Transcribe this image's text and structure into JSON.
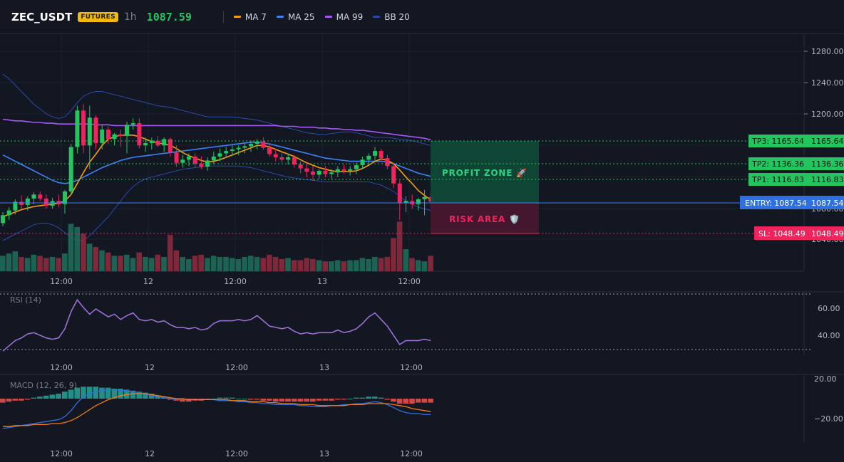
{
  "header": {
    "symbol": "ZEC_USDT",
    "badge": "FUTURES",
    "interval": "1h",
    "last_price": "1087.59"
  },
  "legend": [
    {
      "label": "MA 7",
      "color": "#f59e0b",
      "icon": "line-swatch"
    },
    {
      "label": "MA 25",
      "color": "#3b82f6",
      "icon": "line-swatch"
    },
    {
      "label": "MA 99",
      "color": "#a855f7",
      "icon": "line-swatch"
    },
    {
      "label": "BB 20",
      "color": "#2b4aa8",
      "icon": "line-swatch"
    }
  ],
  "colors": {
    "up": "#22c55e",
    "down": "#f0245d",
    "entry": "#3b82f6",
    "target": "#22c55e",
    "stop": "#f0245d",
    "rsi": "#9c6fd6",
    "macd_line": "#2f6fe0",
    "signal_line": "#f07c1a"
  },
  "price_axis": {
    "ticks": [
      "1280.00",
      "1240.00",
      "1200.00",
      "1080.00",
      "1040.00"
    ]
  },
  "time_axis": [
    "12:00",
    "12",
    "12:00",
    "13",
    "12:00"
  ],
  "levels": {
    "tp3": {
      "label": "TP3: 1165.64",
      "value": "1165.64"
    },
    "tp2": {
      "label": "TP2: 1136.36",
      "value": "1136.36"
    },
    "tp1": {
      "label": "TP1: 1116.83",
      "value": "1116.83"
    },
    "entry": {
      "label": "ENTRY: 1087.54",
      "value": "1087.54"
    },
    "sl": {
      "label": "SL: 1048.49",
      "value": "1048.49"
    }
  },
  "zones": {
    "profit": "PROFIT ZONE 🚀",
    "risk": "RISK AREA 🛡️"
  },
  "rsi": {
    "title": "RSI (14)",
    "ticks": [
      "60.00",
      "40.00"
    ]
  },
  "macd": {
    "title": "MACD (12, 26, 9)",
    "ticks": [
      "20.00",
      "−20.00"
    ]
  },
  "chart_data": {
    "type": "candlestick",
    "price_range": [
      1025,
      1295
    ],
    "candles": [
      [
        1062,
        1076,
        1058,
        1072
      ],
      [
        1072,
        1082,
        1066,
        1078
      ],
      [
        1078,
        1092,
        1073,
        1089
      ],
      [
        1089,
        1097,
        1080,
        1085
      ],
      [
        1085,
        1096,
        1078,
        1093
      ],
      [
        1093,
        1101,
        1086,
        1098
      ],
      [
        1098,
        1102,
        1090,
        1093
      ],
      [
        1093,
        1098,
        1080,
        1084
      ],
      [
        1084,
        1094,
        1080,
        1090
      ],
      [
        1090,
        1098,
        1082,
        1086
      ],
      [
        1086,
        1104,
        1074,
        1102
      ],
      [
        1102,
        1162,
        1098,
        1158
      ],
      [
        1158,
        1210,
        1150,
        1204
      ],
      [
        1204,
        1212,
        1150,
        1160
      ],
      [
        1160,
        1210,
        1130,
        1195
      ],
      [
        1195,
        1198,
        1155,
        1163
      ],
      [
        1163,
        1186,
        1155,
        1180
      ],
      [
        1180,
        1184,
        1162,
        1168
      ],
      [
        1168,
        1176,
        1160,
        1174
      ],
      [
        1174,
        1180,
        1158,
        1172
      ],
      [
        1172,
        1190,
        1150,
        1186
      ],
      [
        1186,
        1194,
        1180,
        1188
      ],
      [
        1188,
        1194,
        1156,
        1160
      ],
      [
        1160,
        1170,
        1152,
        1163
      ],
      [
        1163,
        1170,
        1155,
        1166
      ],
      [
        1166,
        1172,
        1158,
        1160
      ],
      [
        1160,
        1170,
        1152,
        1168
      ],
      [
        1168,
        1170,
        1146,
        1151
      ],
      [
        1151,
        1160,
        1133,
        1138
      ],
      [
        1138,
        1148,
        1132,
        1142
      ],
      [
        1142,
        1150,
        1134,
        1146
      ],
      [
        1146,
        1150,
        1133,
        1137
      ],
      [
        1137,
        1146,
        1130,
        1133
      ],
      [
        1133,
        1145,
        1128,
        1141
      ],
      [
        1141,
        1152,
        1136,
        1146
      ],
      [
        1146,
        1156,
        1140,
        1150
      ],
      [
        1150,
        1158,
        1144,
        1153
      ],
      [
        1153,
        1160,
        1147,
        1155
      ],
      [
        1155,
        1160,
        1148,
        1157
      ],
      [
        1157,
        1163,
        1150,
        1159
      ],
      [
        1159,
        1166,
        1152,
        1162
      ],
      [
        1162,
        1168,
        1155,
        1165
      ],
      [
        1165,
        1170,
        1155,
        1157
      ],
      [
        1157,
        1162,
        1146,
        1149
      ],
      [
        1149,
        1156,
        1140,
        1145
      ],
      [
        1145,
        1152,
        1138,
        1142
      ],
      [
        1142,
        1150,
        1136,
        1145
      ],
      [
        1145,
        1148,
        1132,
        1136
      ],
      [
        1136,
        1140,
        1125,
        1131
      ],
      [
        1131,
        1140,
        1120,
        1127
      ],
      [
        1127,
        1134,
        1115,
        1123
      ],
      [
        1123,
        1130,
        1118,
        1128
      ],
      [
        1128,
        1134,
        1120,
        1124
      ],
      [
        1124,
        1130,
        1118,
        1126
      ],
      [
        1126,
        1134,
        1120,
        1130
      ],
      [
        1130,
        1136,
        1124,
        1128
      ],
      [
        1128,
        1134,
        1122,
        1130
      ],
      [
        1130,
        1138,
        1124,
        1135
      ],
      [
        1135,
        1146,
        1130,
        1142
      ],
      [
        1142,
        1150,
        1136,
        1147
      ],
      [
        1147,
        1158,
        1140,
        1153
      ],
      [
        1153,
        1156,
        1140,
        1144
      ],
      [
        1144,
        1148,
        1130,
        1134
      ],
      [
        1134,
        1138,
        1106,
        1112
      ],
      [
        1112,
        1116,
        1066,
        1088
      ],
      [
        1088,
        1096,
        1076,
        1090
      ],
      [
        1090,
        1098,
        1080,
        1086
      ],
      [
        1086,
        1094,
        1078,
        1092
      ],
      [
        1092,
        1104,
        1072,
        1095
      ],
      [
        1095,
        1100,
        1084,
        1089
      ]
    ],
    "ma7": [
      1070,
      1073,
      1076,
      1079,
      1081,
      1083,
      1084,
      1085,
      1086,
      1087,
      1090,
      1098,
      1112,
      1126,
      1139,
      1149,
      1160,
      1168,
      1171,
      1173,
      1173,
      1173,
      1171,
      1168,
      1165,
      1163,
      1162,
      1160,
      1156,
      1151,
      1147,
      1144,
      1141,
      1139,
      1140,
      1142,
      1145,
      1148,
      1151,
      1154,
      1157,
      1160,
      1160,
      1158,
      1155,
      1152,
      1149,
      1146,
      1142,
      1138,
      1135,
      1132,
      1130,
      1128,
      1127,
      1127,
      1127,
      1128,
      1131,
      1135,
      1140,
      1143,
      1141,
      1137,
      1129,
      1120,
      1112,
      1103,
      1097,
      1091
    ],
    "ma25": [
      1148,
      1144,
      1140,
      1136,
      1132,
      1128,
      1124,
      1120,
      1116,
      1113,
      1112,
      1113,
      1116,
      1120,
      1124,
      1128,
      1132,
      1135,
      1138,
      1141,
      1143,
      1145,
      1146,
      1147,
      1148,
      1149,
      1150,
      1151,
      1152,
      1153,
      1154,
      1155,
      1156,
      1157,
      1158,
      1159,
      1160,
      1161,
      1162,
      1163,
      1164,
      1164,
      1163,
      1162,
      1160,
      1158,
      1156,
      1154,
      1152,
      1150,
      1148,
      1146,
      1144,
      1143,
      1142,
      1141,
      1140,
      1140,
      1140,
      1140,
      1140,
      1140,
      1139,
      1137,
      1134,
      1131,
      1128,
      1125,
      1123,
      1121
    ],
    "ma99": [
      1193,
      1192,
      1191,
      1191,
      1190,
      1189,
      1189,
      1188,
      1188,
      1187,
      1187,
      1187,
      1187,
      1187,
      1187,
      1186,
      1186,
      1186,
      1185,
      1185,
      1185,
      1185,
      1185,
      1185,
      1185,
      1185,
      1185,
      1185,
      1185,
      1185,
      1185,
      1185,
      1185,
      1185,
      1185,
      1185,
      1185,
      1185,
      1185,
      1185,
      1185,
      1185,
      1185,
      1185,
      1185,
      1184,
      1184,
      1184,
      1183,
      1183,
      1183,
      1182,
      1182,
      1181,
      1181,
      1180,
      1180,
      1179,
      1179,
      1178,
      1177,
      1176,
      1175,
      1174,
      1173,
      1172,
      1171,
      1170,
      1169,
      1167
    ],
    "bb_upper": [
      1250,
      1244,
      1236,
      1228,
      1220,
      1212,
      1206,
      1200,
      1196,
      1194,
      1196,
      1204,
      1214,
      1222,
      1226,
      1228,
      1228,
      1226,
      1224,
      1222,
      1220,
      1218,
      1216,
      1214,
      1212,
      1210,
      1209,
      1208,
      1206,
      1204,
      1202,
      1200,
      1198,
      1196,
      1196,
      1196,
      1196,
      1196,
      1195,
      1194,
      1193,
      1192,
      1190,
      1188,
      1186,
      1184,
      1182,
      1180,
      1178,
      1176,
      1175,
      1174,
      1174,
      1175,
      1176,
      1177,
      1177,
      1176,
      1174,
      1172,
      1170,
      1170,
      1170,
      1169,
      1168,
      1167,
      1166,
      1164,
      1162,
      1160
    ],
    "bb_lower": [
      1040,
      1044,
      1048,
      1052,
      1056,
      1060,
      1062,
      1062,
      1060,
      1056,
      1050,
      1044,
      1040,
      1040,
      1046,
      1054,
      1062,
      1070,
      1080,
      1090,
      1100,
      1108,
      1114,
      1118,
      1120,
      1122,
      1124,
      1126,
      1128,
      1130,
      1131,
      1132,
      1133,
      1134,
      1134,
      1134,
      1134,
      1134,
      1134,
      1133,
      1132,
      1130,
      1128,
      1126,
      1124,
      1122,
      1120,
      1119,
      1118,
      1117,
      1116,
      1115,
      1114,
      1114,
      1114,
      1114,
      1114,
      1114,
      1114,
      1114,
      1112,
      1110,
      1106,
      1102,
      1096,
      1090,
      1086,
      1082,
      1080,
      1078
    ],
    "volume": [
      14,
      16,
      18,
      13,
      12,
      15,
      14,
      12,
      13,
      12,
      16,
      43,
      40,
      34,
      25,
      22,
      19,
      17,
      14,
      14,
      15,
      12,
      17,
      13,
      12,
      15,
      13,
      33,
      19,
      13,
      11,
      14,
      15,
      12,
      14,
      13,
      13,
      12,
      11,
      13,
      14,
      13,
      12,
      15,
      13,
      11,
      12,
      10,
      10,
      12,
      11,
      10,
      9,
      9,
      10,
      9,
      10,
      10,
      12,
      11,
      13,
      12,
      13,
      30,
      45,
      20,
      12,
      10,
      9,
      14
    ],
    "volume_up": [
      true,
      true,
      true,
      false,
      true,
      true,
      false,
      false,
      true,
      false,
      true,
      true,
      true,
      false,
      true,
      false,
      true,
      false,
      true,
      false,
      true,
      true,
      false,
      true,
      true,
      false,
      true,
      false,
      false,
      true,
      true,
      false,
      false,
      true,
      true,
      true,
      true,
      true,
      true,
      true,
      true,
      true,
      false,
      false,
      false,
      false,
      true,
      false,
      false,
      false,
      false,
      true,
      false,
      true,
      true,
      false,
      true,
      true,
      true,
      true,
      true,
      false,
      false,
      false,
      false,
      true,
      false,
      true,
      true,
      false
    ],
    "rsi": [
      28,
      32,
      36,
      38,
      41,
      42,
      40,
      38,
      37,
      38,
      45,
      58,
      67,
      61,
      56,
      60,
      57,
      54,
      56,
      52,
      55,
      57,
      52,
      51,
      52,
      50,
      51,
      48,
      46,
      46,
      45,
      46,
      44,
      45,
      49,
      51,
      51,
      51,
      52,
      51,
      52,
      55,
      51,
      47,
      46,
      45,
      46,
      43,
      41,
      42,
      41,
      42,
      42,
      42,
      44,
      42,
      43,
      45,
      49,
      54,
      57,
      52,
      47,
      40,
      33,
      36,
      36,
      36,
      37,
      36
    ],
    "macd_hist": [
      -4,
      -3,
      -2,
      -2,
      -1,
      1,
      2,
      3,
      4,
      5,
      7,
      9,
      11,
      12,
      12,
      12,
      11,
      11,
      10,
      10,
      9,
      8,
      7,
      6,
      5,
      3,
      1,
      -1,
      -2,
      -3,
      -3,
      -2,
      -2,
      -1,
      0,
      1,
      1,
      1,
      0,
      0,
      -1,
      -1,
      -2,
      -2,
      -3,
      -3,
      -3,
      -3,
      -3,
      -3,
      -3,
      -2,
      -2,
      -2,
      -1,
      -1,
      0,
      1,
      1,
      2,
      2,
      1,
      -1,
      -3,
      -5,
      -5,
      -5,
      -4,
      -4,
      -4
    ],
    "macd_line": [
      -30,
      -29,
      -28,
      -27,
      -26,
      -25,
      -24,
      -23,
      -22,
      -21,
      -18,
      -12,
      -4,
      2,
      5,
      7,
      8,
      9,
      9,
      8,
      8,
      7,
      6,
      5,
      3,
      2,
      1,
      0,
      -1,
      -1,
      -1,
      -1,
      -1,
      -1,
      -1,
      -2,
      -2,
      -2,
      -3,
      -3,
      -4,
      -4,
      -5,
      -5,
      -6,
      -6,
      -6,
      -6,
      -7,
      -7,
      -8,
      -8,
      -8,
      -7,
      -7,
      -6,
      -6,
      -5,
      -5,
      -4,
      -3,
      -4,
      -6,
      -9,
      -12,
      -14,
      -15,
      -15,
      -16,
      -16
    ],
    "signal_line": [
      -28,
      -28,
      -27,
      -27,
      -27,
      -26,
      -26,
      -26,
      -25,
      -25,
      -24,
      -22,
      -19,
      -15,
      -11,
      -7,
      -4,
      -1,
      1,
      3,
      4,
      5,
      5,
      5,
      4,
      3,
      2,
      1,
      0,
      0,
      -1,
      -1,
      -1,
      -1,
      -1,
      -1,
      -1,
      -2,
      -2,
      -2,
      -3,
      -3,
      -3,
      -4,
      -4,
      -5,
      -5,
      -5,
      -6,
      -6,
      -6,
      -7,
      -7,
      -7,
      -7,
      -7,
      -6,
      -6,
      -6,
      -5,
      -5,
      -5,
      -5,
      -6,
      -7,
      -8,
      -10,
      -11,
      -12,
      -13
    ]
  }
}
